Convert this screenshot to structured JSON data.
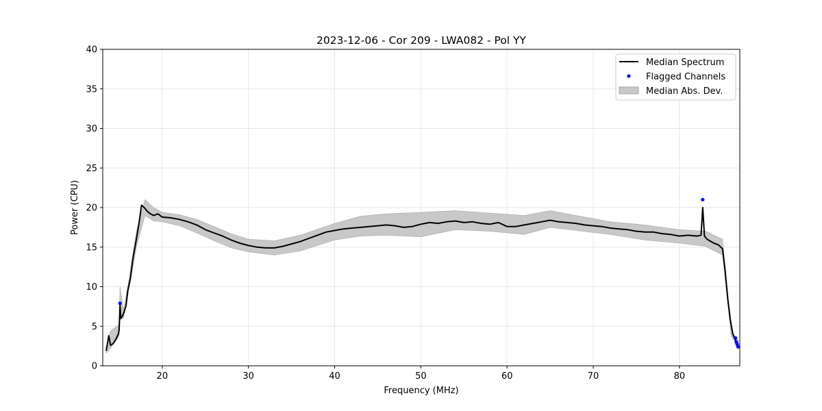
{
  "chart_data": {
    "type": "line",
    "title": "2023-12-06 - Cor 209 - LWA082 - Pol YY",
    "xlabel": "Frequency (MHz)",
    "ylabel": "Power (CPU)",
    "xlim": [
      13.1,
      87.0
    ],
    "ylim": [
      0,
      40
    ],
    "xticks": [
      20,
      30,
      40,
      50,
      60,
      70,
      80
    ],
    "yticks": [
      0,
      5,
      10,
      15,
      20,
      25,
      30,
      35,
      40
    ],
    "grid": true,
    "legend_position": "top-right",
    "legend": [
      "Median Spectrum",
      "Flagged Channels",
      "Median Abs. Dev."
    ],
    "colors": {
      "median": "#000000",
      "flagged": "#0000ff",
      "mad_fill": "#c8c8c8",
      "mad_edge": "#a8a8a8",
      "grid": "#e6e6e6"
    },
    "series": [
      {
        "name": "Median Spectrum",
        "x": [
          13.5,
          13.8,
          14.0,
          14.3,
          14.6,
          14.9,
          15.0,
          15.1,
          15.2,
          15.4,
          15.6,
          15.8,
          16.0,
          16.3,
          16.6,
          17.0,
          17.3,
          17.6,
          18.0,
          18.2,
          18.5,
          19.0,
          19.5,
          20.0,
          21.0,
          22.0,
          23.0,
          24.0,
          25.0,
          26.0,
          27.0,
          28.0,
          29.0,
          30.0,
          31.0,
          32.0,
          33.0,
          34.0,
          35.0,
          36.0,
          37.0,
          38.0,
          39.0,
          40.0,
          41.0,
          42.0,
          43.0,
          44.0,
          45.0,
          46.0,
          47.0,
          48.0,
          49.0,
          50.0,
          51.0,
          52.0,
          53.0,
          54.0,
          55.0,
          56.0,
          57.0,
          58.0,
          59.0,
          60.0,
          61.0,
          62.0,
          63.0,
          64.0,
          65.0,
          66.0,
          67.0,
          68.0,
          69.0,
          70.0,
          71.0,
          72.0,
          73.0,
          74.0,
          75.0,
          76.0,
          77.0,
          78.0,
          79.0,
          80.0,
          81.0,
          82.0,
          82.5,
          82.7,
          82.9,
          83.2,
          83.5,
          84.0,
          84.5,
          85.0,
          85.3,
          85.6,
          85.9,
          86.2,
          86.5,
          86.8
        ],
        "y": [
          1.9,
          3.8,
          2.6,
          2.8,
          3.3,
          4.0,
          4.5,
          7.6,
          6.0,
          6.3,
          6.9,
          7.6,
          9.5,
          11.0,
          13.5,
          16.0,
          18.0,
          20.3,
          19.9,
          19.6,
          19.3,
          19.0,
          19.2,
          18.8,
          18.7,
          18.5,
          18.2,
          17.8,
          17.2,
          16.8,
          16.4,
          15.9,
          15.5,
          15.2,
          15.0,
          14.9,
          14.9,
          15.1,
          15.4,
          15.7,
          16.1,
          16.5,
          16.9,
          17.1,
          17.3,
          17.4,
          17.5,
          17.6,
          17.7,
          17.8,
          17.7,
          17.5,
          17.6,
          17.9,
          18.1,
          18.0,
          18.2,
          18.3,
          18.1,
          18.2,
          18.0,
          17.9,
          18.1,
          17.6,
          17.6,
          17.8,
          18.0,
          18.2,
          18.4,
          18.2,
          18.1,
          18.0,
          17.8,
          17.7,
          17.6,
          17.4,
          17.3,
          17.2,
          17.0,
          16.9,
          16.9,
          16.7,
          16.6,
          16.4,
          16.5,
          16.4,
          16.5,
          20.0,
          16.4,
          16.0,
          15.8,
          15.5,
          15.3,
          14.8,
          12.0,
          8.5,
          5.8,
          4.0,
          3.2,
          2.8
        ]
      },
      {
        "name": "Median Abs. Dev.",
        "x": [
          13.5,
          14.0,
          15.0,
          15.1,
          15.5,
          16.0,
          17.0,
          18.0,
          19.0,
          20.0,
          22.0,
          24.0,
          26.0,
          28.0,
          30.0,
          33.0,
          36.0,
          40.0,
          43.0,
          46.0,
          50.0,
          54.0,
          58.0,
          62.0,
          65.0,
          68.0,
          72.0,
          76.0,
          80.0,
          83.0,
          85.0,
          86.0,
          86.8
        ],
        "lower": [
          1.6,
          2.2,
          3.8,
          5.8,
          6.0,
          8.8,
          15.0,
          19.0,
          18.3,
          18.2,
          17.7,
          16.8,
          15.8,
          14.9,
          14.4,
          14.0,
          14.5,
          15.9,
          16.4,
          16.5,
          16.3,
          17.2,
          17.0,
          16.6,
          17.5,
          17.1,
          16.6,
          15.9,
          15.5,
          15.1,
          14.0,
          3.7,
          2.5
        ],
        "upper": [
          2.3,
          4.4,
          5.2,
          10.0,
          7.0,
          10.0,
          17.0,
          21.0,
          20.0,
          19.4,
          19.1,
          18.5,
          17.6,
          16.7,
          16.0,
          15.8,
          16.5,
          18.0,
          18.9,
          19.2,
          19.4,
          19.6,
          19.3,
          19.0,
          19.6,
          19.0,
          18.2,
          17.8,
          17.2,
          17.0,
          16.0,
          4.4,
          3.2
        ]
      },
      {
        "name": "Flagged Channels",
        "x": [
          15.1,
          82.7,
          86.5,
          86.6,
          86.7,
          86.8
        ],
        "y": [
          7.9,
          21.0,
          3.5,
          3.0,
          2.7,
          2.4
        ]
      }
    ]
  }
}
